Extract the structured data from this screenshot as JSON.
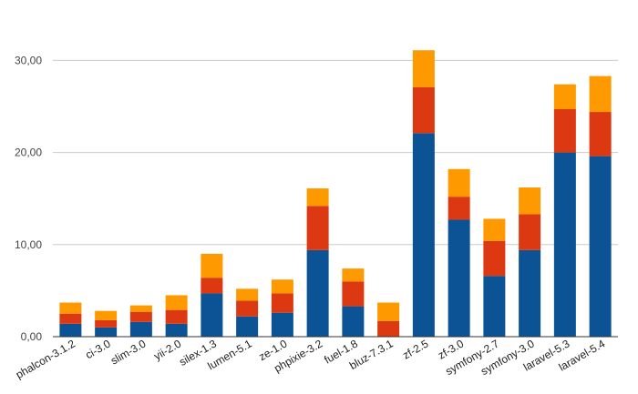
{
  "chart_data": {
    "type": "bar",
    "stacked": true,
    "categories": [
      "phalcon-3.1.2",
      "ci-3.0",
      "slim-3.0",
      "yii-2.0",
      "silex-1.3",
      "lumen-5.1",
      "ze-1.0",
      "phpixie-3.2",
      "fuel-1.8",
      "bluz-7.3.1",
      "zf-2.5",
      "zf-3.0",
      "symfony-2.7",
      "symfony-3.0",
      "laravel-5.3",
      "laravel-5.4"
    ],
    "series": [
      {
        "color": "#0b5394",
        "values": [
          1.4,
          1.0,
          1.6,
          1.4,
          4.7,
          2.2,
          2.6,
          9.4,
          3.3,
          0.0,
          22.1,
          12.7,
          6.6,
          9.4,
          20.0,
          19.6
        ]
      },
      {
        "color": "#dc3912",
        "values": [
          1.1,
          0.8,
          1.1,
          1.5,
          1.7,
          1.7,
          2.1,
          4.8,
          2.7,
          1.7,
          5.0,
          2.5,
          3.8,
          3.9,
          4.7,
          4.8
        ]
      },
      {
        "color": "#ff9900",
        "values": [
          1.2,
          1.0,
          0.7,
          1.6,
          2.6,
          1.3,
          1.5,
          1.9,
          1.4,
          2.0,
          4.0,
          3.0,
          2.4,
          2.9,
          2.7,
          3.9
        ]
      }
    ],
    "yticks": [
      0,
      10,
      20,
      30
    ],
    "ytick_labels": [
      "0,00",
      "10,00",
      "20,00",
      "30,00"
    ],
    "ylim": [
      0,
      33
    ],
    "title": "",
    "xlabel": "",
    "ylabel": "",
    "grid": true,
    "legend": "none"
  }
}
